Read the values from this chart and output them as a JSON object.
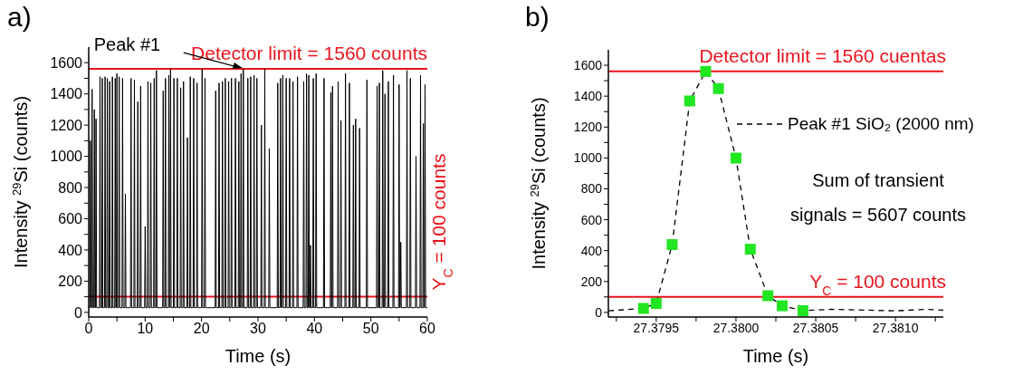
{
  "chart_data": [
    {
      "type": "line",
      "title": "a)",
      "xlabel": "Time (s)",
      "ylabel": "Intensity $^{29}$Si (counts)",
      "xlim": [
        0,
        60
      ],
      "ylim": [
        -30,
        1700
      ],
      "xticks": [
        0,
        {
          "value": 5,
          "label": null
        },
        10,
        {
          "value": 15,
          "label": null
        },
        20,
        {
          "value": 25,
          "label": null
        },
        30,
        {
          "value": 35,
          "label": null
        },
        40,
        {
          "value": 45,
          "label": null
        },
        50,
        {
          "value": 55,
          "label": null
        },
        60
      ],
      "yticks": [
        0,
        {
          "value": 100,
          "label": null
        },
        200,
        {
          "value": 300,
          "label": null
        },
        400,
        {
          "value": 500,
          "label": null
        },
        600,
        {
          "value": 700,
          "label": null
        },
        800,
        {
          "value": 900,
          "label": null
        },
        1000,
        {
          "value": 1100,
          "label": null
        },
        1200,
        {
          "value": 1300,
          "label": null
        },
        1400,
        {
          "value": 1500,
          "label": null
        },
        1600
      ],
      "grid": false,
      "legend": false,
      "series": [
        {
          "type": "line",
          "color": "#000000",
          "marker": "none",
          "line_style": "solid",
          "x": [
            0,
            0.2,
            0.3,
            0.4,
            0.5,
            0.6,
            0.7,
            0.9,
            1.0,
            1.1,
            1.2,
            1.3,
            1.4,
            1.9,
            2.0,
            2.1,
            2.3,
            2.4,
            2.5,
            2.8,
            2.9,
            3.0,
            3.2,
            3.3,
            3.4,
            3.6,
            3.7,
            3.8,
            4.1,
            4.2,
            4.3,
            4.6,
            4.7,
            4.8,
            4.9,
            5.0,
            5.1,
            5.3,
            5.4,
            5.5,
            5.9,
            6.0,
            6.1,
            6.4,
            6.5,
            6.6,
            7.4,
            7.5,
            7.6,
            8.0,
            8.1,
            8.2,
            8.6,
            8.7,
            8.8,
            9.1,
            9.2,
            9.3,
            9.9,
            10.0,
            10.1,
            10.4,
            10.5,
            10.6,
            10.9,
            11.0,
            11.1,
            11.5,
            11.6,
            11.7,
            11.9,
            12.0,
            12.1,
            13.1,
            13.2,
            13.3,
            13.5,
            13.6,
            13.7,
            14.1,
            14.2,
            14.3,
            14.4,
            14.5,
            14.6,
            15.0,
            15.1,
            15.2,
            15.6,
            15.7,
            15.8,
            16.2,
            16.3,
            16.4,
            16.7,
            16.8,
            16.9,
            17.4,
            17.5,
            17.6,
            17.9,
            18.0,
            18.1,
            18.5,
            18.6,
            18.7,
            19.1,
            19.2,
            19.3,
            20.0,
            20.1,
            20.2,
            20.5,
            20.6,
            20.7,
            22.4,
            22.5,
            22.6,
            23.0,
            23.1,
            23.2,
            23.6,
            23.7,
            23.8,
            24.1,
            24.2,
            24.3,
            24.7,
            24.8,
            24.9,
            25.2,
            25.3,
            25.4,
            25.9,
            26.0,
            26.1,
            26.5,
            26.6,
            26.7,
            26.9,
            27.0,
            27.1,
            27.3,
            27.4,
            27.5,
            28.1,
            28.2,
            28.3,
            28.6,
            28.7,
            28.8,
            29.2,
            29.3,
            29.4,
            29.7,
            29.8,
            29.9,
            30.5,
            30.6,
            30.7,
            31.1,
            31.2,
            31.3,
            31.9,
            32.0,
            32.1,
            33.4,
            33.5,
            33.6,
            33.9,
            34.0,
            34.1,
            34.3,
            34.4,
            34.5,
            34.9,
            35.0,
            35.1,
            35.5,
            35.6,
            35.7,
            36.1,
            36.2,
            36.3,
            36.9,
            37.0,
            37.1,
            38.0,
            38.1,
            38.2,
            38.5,
            38.6,
            38.7,
            38.9,
            39.0,
            39.1,
            39.2,
            39.3,
            39.4,
            39.7,
            39.8,
            39.9,
            40.2,
            40.3,
            40.4,
            41.6,
            41.7,
            41.8,
            42.8,
            42.9,
            43.0,
            43.1,
            43.2,
            43.3,
            44.1,
            44.2,
            44.3,
            44.6,
            44.7,
            44.8,
            45.4,
            45.5,
            45.6,
            46.1,
            46.2,
            46.3,
            46.8,
            46.9,
            47.0,
            47.2,
            47.3,
            47.4,
            47.9,
            48.0,
            48.1,
            49.2,
            49.3,
            49.4,
            51.0,
            51.1,
            51.2,
            51.4,
            51.5,
            51.6,
            52.0,
            52.1,
            52.2,
            52.4,
            52.5,
            52.6,
            53.0,
            53.1,
            53.2,
            53.9,
            54.0,
            54.1,
            54.9,
            55.0,
            55.1,
            55.2,
            55.3,
            55.4,
            56.3,
            56.4,
            56.5,
            56.9,
            57.0,
            57.1,
            57.9,
            58.0,
            58.1,
            58.7,
            58.8,
            58.9,
            59.2,
            59.3,
            59.4,
            59.5,
            59.6,
            59.7,
            60
          ],
          "values": [
            30,
            30,
            1100,
            30,
            30,
            1430,
            30,
            30,
            1300,
            30,
            30,
            1240,
            30,
            30,
            1510,
            30,
            30,
            1500,
            30,
            30,
            1510,
            30,
            30,
            1500,
            30,
            30,
            1480,
            30,
            30,
            1510,
            30,
            30,
            1500,
            30,
            30,
            1530,
            30,
            30,
            1510,
            30,
            30,
            1500,
            30,
            30,
            760,
            30,
            30,
            1500,
            30,
            30,
            1490,
            30,
            30,
            1350,
            30,
            30,
            1450,
            30,
            30,
            550,
            30,
            30,
            1480,
            30,
            30,
            1470,
            30,
            30,
            1500,
            30,
            30,
            1550,
            30,
            30,
            1420,
            30,
            30,
            1500,
            30,
            30,
            1520,
            30,
            30,
            1560,
            30,
            30,
            1500,
            30,
            30,
            1500,
            30,
            30,
            1440,
            30,
            30,
            1480,
            30,
            30,
            1120,
            30,
            30,
            1510,
            30,
            30,
            1500,
            30,
            30,
            1470,
            30,
            30,
            1560,
            30,
            30,
            1500,
            30,
            30,
            1420,
            30,
            30,
            1470,
            30,
            30,
            1480,
            30,
            30,
            1500,
            30,
            30,
            1480,
            30,
            30,
            1500,
            30,
            30,
            1500,
            30,
            30,
            1480,
            30,
            30,
            1530,
            30,
            30,
            1560,
            30,
            30,
            1500,
            30,
            30,
            1510,
            30,
            30,
            1520,
            30,
            30,
            1500,
            30,
            30,
            1200,
            30,
            30,
            1560,
            30,
            30,
            1050,
            30,
            30,
            1470,
            30,
            30,
            1500,
            30,
            30,
            1520,
            30,
            30,
            1500,
            30,
            30,
            1500,
            30,
            30,
            1480,
            30,
            30,
            1510,
            30,
            30,
            1480,
            30,
            30,
            1530,
            30,
            30,
            1520,
            30,
            30,
            430,
            30,
            30,
            1500,
            30,
            30,
            1530,
            30,
            30,
            1500,
            30,
            30,
            1410,
            30,
            30,
            1450,
            30,
            30,
            1480,
            30,
            30,
            1230,
            30,
            30,
            1530,
            30,
            30,
            1470,
            30,
            30,
            1200,
            30,
            30,
            1240,
            30,
            30,
            1180,
            30,
            30,
            1490,
            30,
            30,
            1450,
            30,
            30,
            1470,
            30,
            30,
            1550,
            30,
            30,
            1400,
            30,
            30,
            1480,
            30,
            30,
            1520,
            30,
            30,
            1460,
            30,
            30,
            450,
            30,
            30,
            1550,
            30,
            30,
            1500,
            30,
            30,
            1000,
            30,
            30,
            1520,
            30,
            30,
            1210,
            30,
            30,
            1460,
            30,
            30
          ]
        }
      ],
      "ref_lines": [
        {
          "axis": "y",
          "value": 1560,
          "label": "Detector limit = 1560 counts",
          "color": "#e8141c"
        },
        {
          "axis": "y",
          "value": 100,
          "label": "Y$_{C}$ = 100 counts",
          "color": "#e8141c"
        }
      ],
      "annotations": [
        {
          "text": "Peak #1",
          "x": 27.4,
          "y": 1560
        }
      ]
    },
    {
      "type": "line",
      "title": "b)",
      "xlabel": "Time (s)",
      "ylabel": "Intensity $^{29}$Si (counts)",
      "xlim": [
        27.3792,
        27.3813
      ],
      "ylim": [
        -30,
        1700
      ],
      "xticks": [
        {
          "value": 27.37925,
          "label": null
        },
        27.3795,
        {
          "value": 27.37975,
          "label": null
        },
        {
          "value": 27.38,
          "label": "27.3800"
        },
        {
          "value": 27.38025,
          "label": null
        },
        27.3805,
        {
          "value": 27.38075,
          "label": null
        },
        {
          "value": 27.381,
          "label": "27.3810"
        },
        {
          "value": 27.38125,
          "label": null
        }
      ],
      "yticks": [
        0,
        {
          "value": 100,
          "label": null
        },
        200,
        {
          "value": 300,
          "label": null
        },
        400,
        {
          "value": 500,
          "label": null
        },
        600,
        {
          "value": 700,
          "label": null
        },
        800,
        {
          "value": 900,
          "label": null
        },
        1000,
        {
          "value": 1100,
          "label": null
        },
        1200,
        {
          "value": 1300,
          "label": null
        },
        1400,
        {
          "value": 1500,
          "label": null
        },
        1600
      ],
      "grid": false,
      "legend": "right",
      "series": [
        {
          "type": "line",
          "name": "Peak #1 SiO₂ (2000 nm)",
          "color": "#000000",
          "marker": "none",
          "line_style": "dashed",
          "x": [
            27.3792,
            27.37942,
            27.3795,
            27.3796,
            27.37971,
            27.37981,
            27.37989,
            27.38,
            27.38009,
            27.3802,
            27.38029,
            27.38042,
            27.3806,
            27.3808,
            27.381,
            27.3812,
            27.3813
          ],
          "values": [
            10,
            26,
            58,
            439,
            1369,
            1560,
            1449,
            999,
            409,
            108,
            43,
            11,
            20,
            15,
            10,
            20,
            15
          ]
        },
        {
          "type": "scatter",
          "color": "#22e622",
          "marker": "square",
          "x": [
            27.37942,
            27.3795,
            27.3796,
            27.37971,
            27.37981,
            27.37989,
            27.38,
            27.38009,
            27.3802,
            27.38029,
            27.38042
          ],
          "values": [
            26,
            58,
            439,
            1369,
            1560,
            1449,
            999,
            409,
            108,
            43,
            11
          ]
        }
      ],
      "ref_lines": [
        {
          "axis": "y",
          "value": 1560,
          "label": "Detector limit = 1560 cuentas",
          "color": "#e8141c"
        },
        {
          "axis": "y",
          "value": 100,
          "label": "Y$_{C}$ = 100 counts",
          "color": "#e8141c"
        }
      ],
      "annotations": [
        "Sum of transient\nsignals = 5607 counts"
      ]
    }
  ]
}
